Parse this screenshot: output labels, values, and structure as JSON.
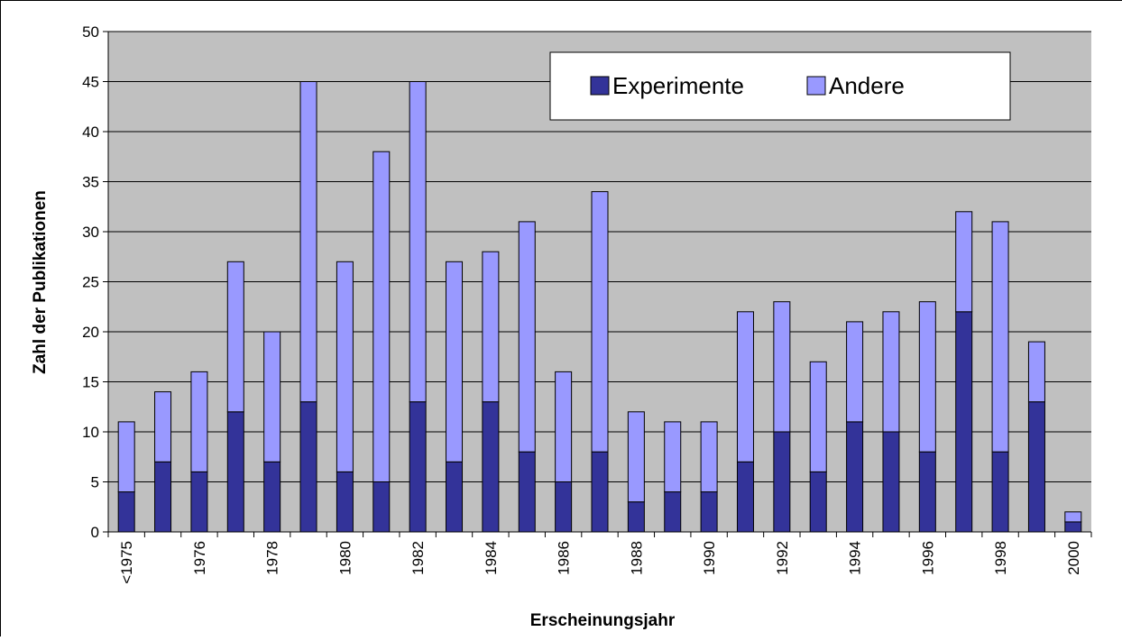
{
  "chart_data": {
    "type": "stacked_bar",
    "x_label": "Erscheinungsjahr",
    "y_label": "Zahl der Publikationen",
    "categories": [
      "<1975",
      null,
      "1976",
      null,
      "1978",
      null,
      "1980",
      null,
      "1982",
      null,
      "1984",
      null,
      "1986",
      null,
      "1988",
      null,
      "1990",
      null,
      "1992",
      null,
      "1994",
      null,
      "1996",
      null,
      "1998",
      null,
      "2000"
    ],
    "series": [
      {
        "name": "Experimente",
        "color": "#333399",
        "values": [
          4,
          7,
          6,
          12,
          7,
          13,
          6,
          5,
          13,
          7,
          13,
          8,
          5,
          8,
          3,
          4,
          4,
          7,
          10,
          6,
          11,
          10,
          8,
          22,
          8,
          13,
          1
        ]
      },
      {
        "name": "Andere",
        "color": "#9999ff",
        "values": [
          7,
          7,
          10,
          15,
          13,
          32,
          21,
          33,
          32,
          20,
          15,
          23,
          11,
          26,
          9,
          7,
          7,
          15,
          13,
          11,
          10,
          12,
          15,
          10,
          23,
          6,
          1
        ]
      }
    ],
    "ylim": [
      0,
      50
    ],
    "yticks": [
      0,
      5,
      10,
      15,
      20,
      25,
      30,
      35,
      40,
      45,
      50
    ],
    "legend": "top-right"
  }
}
